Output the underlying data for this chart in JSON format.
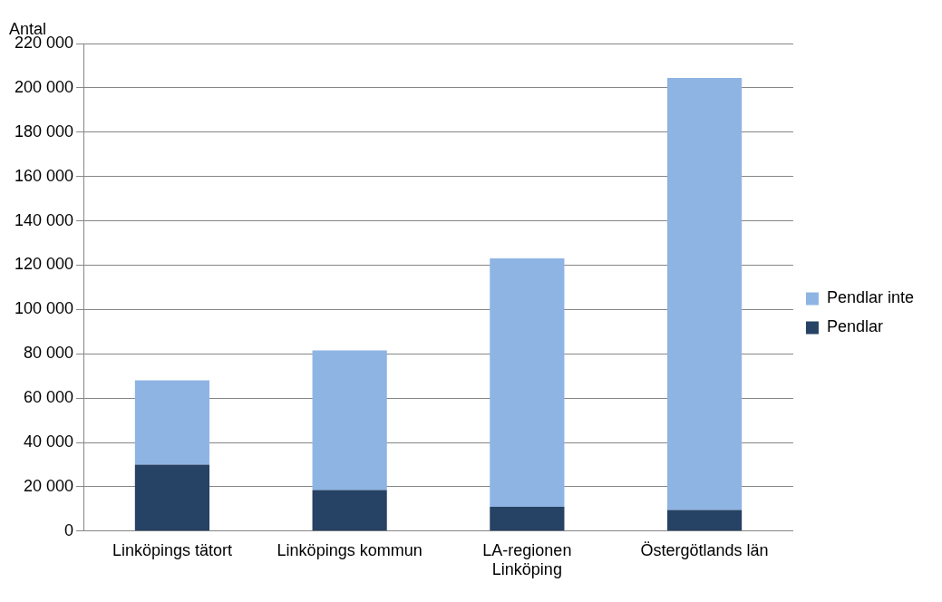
{
  "chart_data": {
    "type": "bar",
    "ylabel": "Antal",
    "stacked": true,
    "grid": "y",
    "legend": "right",
    "categories": [
      "Linköpings tätort",
      "Linköpings kommun",
      "LA-regionen Linköping",
      "Östergötlands län"
    ],
    "series": [
      {
        "name": "Pendlar",
        "color": "#264264",
        "values": [
          30000,
          18500,
          11000,
          9500
        ]
      },
      {
        "name": "Pendlar inte",
        "color": "#8eb4e3",
        "values": [
          38000,
          63000,
          112000,
          195000
        ]
      }
    ],
    "ylim": [
      0,
      220000
    ],
    "yticks": [
      0,
      {
        "value": 20000,
        "label": "20 000"
      },
      {
        "value": 40000,
        "label": "40 000"
      },
      {
        "value": 60000,
        "label": "60 000"
      },
      {
        "value": 80000,
        "label": "80 000"
      },
      {
        "value": 100000,
        "label": "100 000"
      },
      {
        "value": 120000,
        "label": "120 000"
      },
      {
        "value": 140000,
        "label": "140 000"
      },
      {
        "value": 160000,
        "label": "160 000"
      },
      {
        "value": 180000,
        "label": "180 000"
      },
      {
        "value": 200000,
        "label": "200 000"
      },
      {
        "value": 220000,
        "label": "220 000"
      }
    ]
  }
}
